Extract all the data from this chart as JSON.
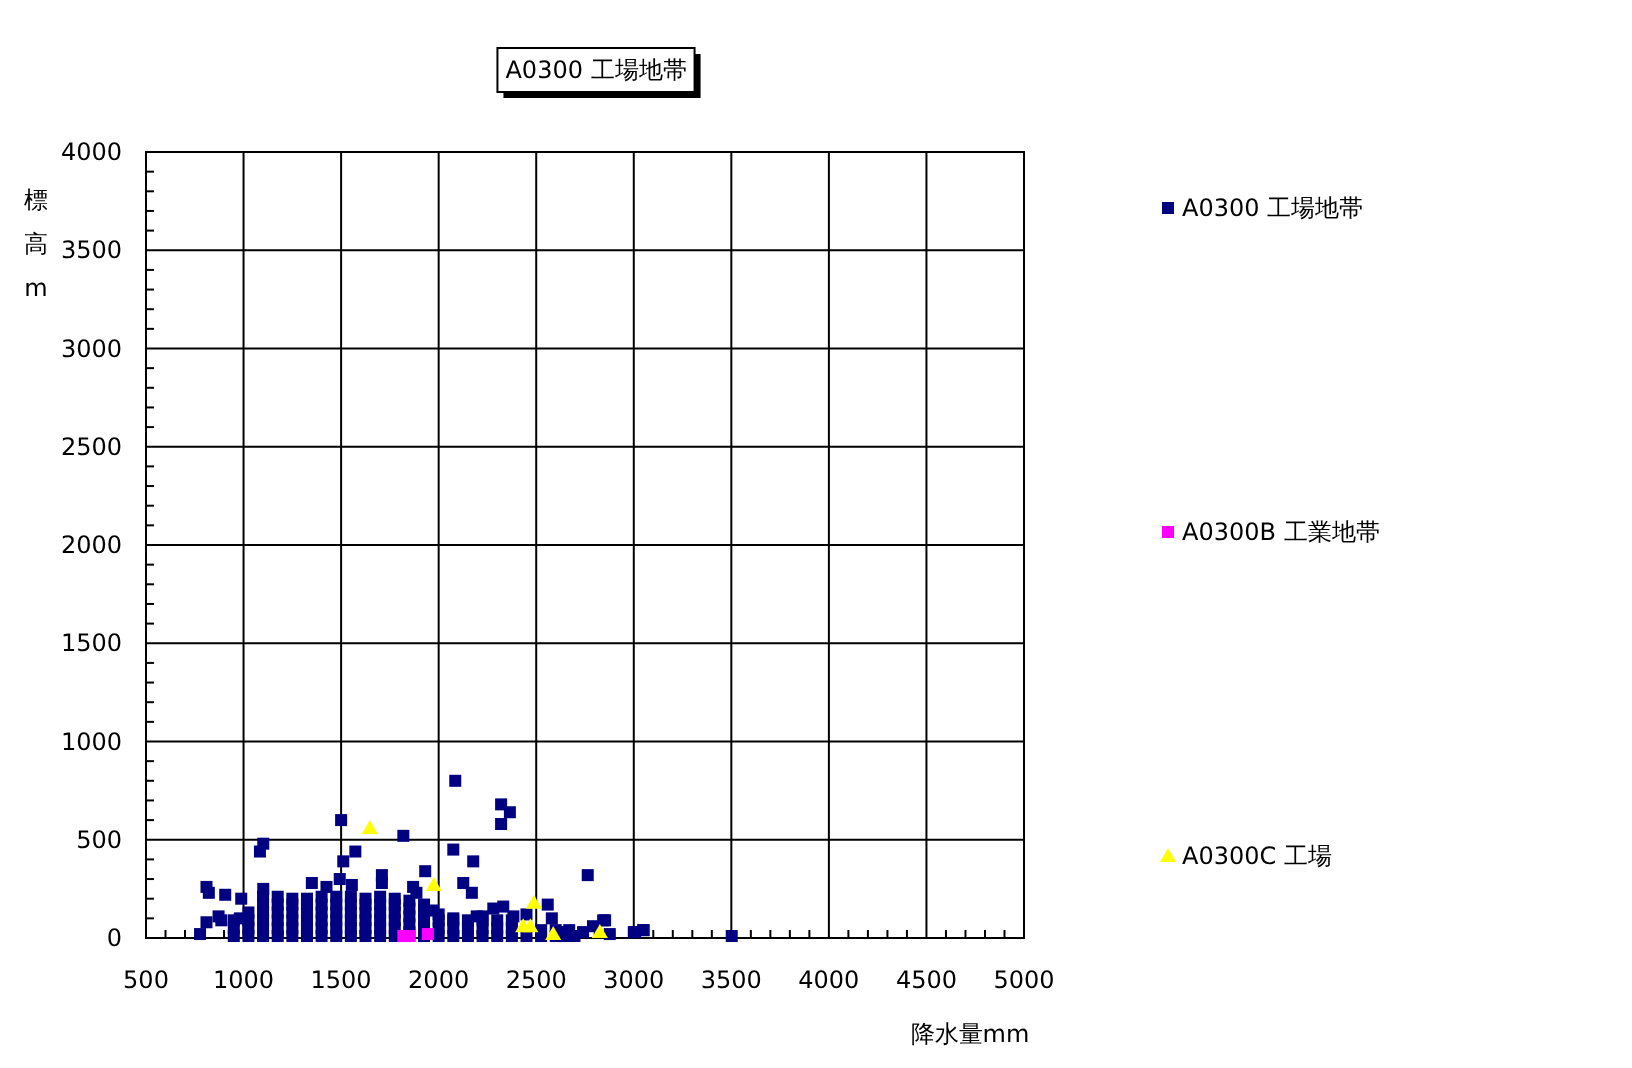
{
  "chart_data": {
    "type": "scatter",
    "title": "A0300 工場地帯",
    "xlabel": "降水量mm",
    "ylabel": "標高m",
    "xlim": [
      500,
      5000
    ],
    "ylim": [
      0,
      4000
    ],
    "xticks": [
      500,
      1000,
      1500,
      2000,
      2500,
      3000,
      3500,
      4000,
      4500,
      5000
    ],
    "yticks": [
      0,
      500,
      1000,
      1500,
      2000,
      2500,
      3000,
      3500,
      4000
    ],
    "grid": true,
    "legend": "right",
    "series": [
      {
        "name": "A0300 工場地帯",
        "color": "#000080",
        "marker": "square",
        "x": [
          2085,
          2320,
          2365,
          2320,
          1500,
          1819,
          1101,
          1084,
          1573,
          2075,
          2177,
          1511,
          1931,
          2764,
          2126,
          2170,
          1709,
          1709,
          1350,
          810,
          822,
          906,
          988,
          1101,
          1425,
          1493,
          1555,
          1869,
          1886,
          2331,
          2280,
          2559,
          2580,
          2853,
          3051,
          3000,
          777,
          810,
          872,
          886,
          981,
          2740,
          2655,
          1972,
          2075,
          2195,
          2383,
          2669,
          2648,
          2696,
          2791,
          2843,
          2877,
          3007,
          3048,
          3502,
          950,
          950,
          950,
          1025,
          1025,
          1025,
          1025,
          1100,
          1100,
          1100,
          1100,
          1100,
          1100,
          1175,
          1175,
          1175,
          1175,
          1175,
          1175,
          1250,
          1250,
          1250,
          1250,
          1250,
          1250,
          1325,
          1325,
          1325,
          1325,
          1325,
          1325,
          1400,
          1400,
          1400,
          1400,
          1400,
          1400,
          1475,
          1475,
          1475,
          1475,
          1475,
          1475,
          1550,
          1550,
          1550,
          1550,
          1550,
          1550,
          1625,
          1625,
          1625,
          1625,
          1625,
          1625,
          1700,
          1700,
          1700,
          1700,
          1700,
          1700,
          1775,
          1775,
          1775,
          1775,
          1775,
          1775,
          1850,
          1850,
          1850,
          1850,
          1850,
          1925,
          1925,
          1925,
          1925,
          1925,
          2000,
          2000,
          2000,
          2000,
          2075,
          2075,
          2075,
          2150,
          2150,
          2150,
          2225,
          2225,
          2225,
          2225,
          2300,
          2300,
          2300,
          2375,
          2375,
          2375,
          2450,
          2450,
          2525,
          2525,
          2600,
          2600
        ],
        "values": [
          800,
          680,
          640,
          580,
          600,
          520,
          480,
          440,
          440,
          450,
          390,
          390,
          340,
          320,
          280,
          230,
          320,
          280,
          280,
          260,
          230,
          220,
          200,
          250,
          260,
          300,
          270,
          260,
          230,
          160,
          150,
          170,
          100,
          90,
          40,
          30,
          20,
          80,
          110,
          90,
          100,
          30,
          30,
          140,
          100,
          110,
          110,
          40,
          10,
          10,
          60,
          90,
          20,
          30,
          40,
          10,
          10,
          50,
          90,
          10,
          50,
          90,
          130,
          10,
          50,
          90,
          130,
          170,
          210,
          10,
          50,
          90,
          130,
          170,
          210,
          10,
          50,
          90,
          130,
          170,
          200,
          10,
          50,
          90,
          130,
          170,
          200,
          10,
          50,
          90,
          130,
          170,
          210,
          10,
          50,
          90,
          130,
          170,
          210,
          10,
          50,
          90,
          130,
          170,
          210,
          10,
          50,
          90,
          130,
          170,
          200,
          10,
          50,
          90,
          130,
          170,
          210,
          10,
          50,
          90,
          130,
          170,
          200,
          30,
          70,
          110,
          150,
          190,
          10,
          50,
          90,
          130,
          170,
          10,
          50,
          90,
          120,
          10,
          50,
          90,
          10,
          50,
          90,
          10,
          50,
          90,
          110,
          10,
          50,
          90,
          10,
          50,
          90,
          10,
          120,
          10,
          40,
          10,
          40
        ]
      },
      {
        "name": "A0300B 工業地帯",
        "color": "#ff00ff",
        "marker": "square",
        "x": [
          1819,
          1852,
          1945
        ],
        "values": [
          10,
          10,
          20
        ]
      },
      {
        "name": "A0300C 工場",
        "color": "#ffff00",
        "marker": "triangle",
        "x": [
          1647,
          1975,
          2488,
          2433,
          2470,
          2587,
          2826
        ],
        "values": [
          560,
          270,
          180,
          60,
          60,
          20,
          30
        ]
      }
    ]
  }
}
